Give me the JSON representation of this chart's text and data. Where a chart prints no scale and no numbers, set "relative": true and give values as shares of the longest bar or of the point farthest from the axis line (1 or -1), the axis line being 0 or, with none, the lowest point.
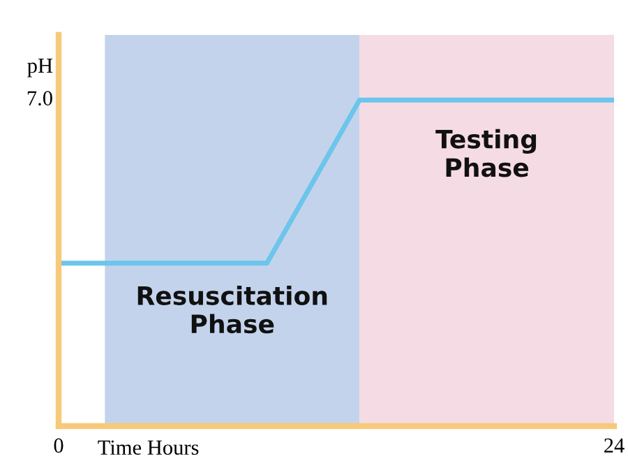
{
  "chart_data": {
    "type": "line",
    "relative": true,
    "ylabel": "pH",
    "xlabel": "Time Hours",
    "x": [
      0,
      9,
      13,
      24
    ],
    "xlim": [
      0,
      24
    ],
    "xticks": [
      0,
      24
    ],
    "series": [
      {
        "color": "#6cc5ea",
        "values": [
          0.5,
          0.5,
          1,
          1
        ]
      }
    ],
    "annotations": [
      "7.0"
    ],
    "bands": [
      {
        "axis": "x",
        "from": 2,
        "to": 13,
        "label": "Resuscitation\nPhase",
        "color": "#9db5e0"
      },
      {
        "axis": "x",
        "from": 13,
        "to": 24,
        "label": "Testing\nPhase",
        "color": "#eec3d2"
      }
    ],
    "grid": false,
    "legend": false,
    "marker": "none",
    "line_style": "solid"
  }
}
